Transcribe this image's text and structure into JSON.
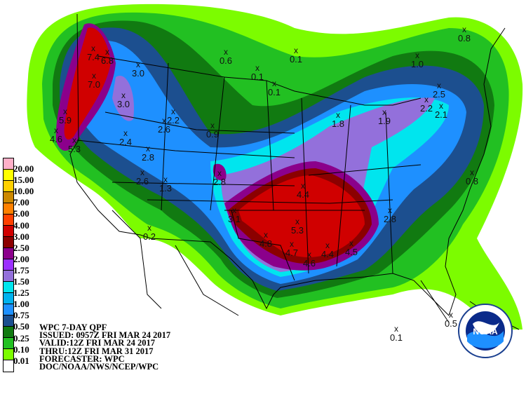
{
  "legend": {
    "colors": [
      "#ffb0c8",
      "#ffff00",
      "#ffd000",
      "#cc8800",
      "#ff8000",
      "#ff4000",
      "#d00000",
      "#8b0000",
      "#8b008b",
      "#9b30ff",
      "#9370db",
      "#00e5ee",
      "#00b2ee",
      "#1e90ff",
      "#1c4f8f",
      "#117a11",
      "#22c022",
      "#7cfc00",
      "#ffffff"
    ],
    "labels": [
      "20.00",
      "15.00",
      "10.00",
      "7.00",
      "5.00",
      "4.00",
      "3.00",
      "2.50",
      "2.00",
      "1.75",
      "1.50",
      "1.25",
      "1.00",
      "0.75",
      "0.50",
      "0.25",
      "0.10",
      "0.01"
    ]
  },
  "info": {
    "line1": "WPC 7-DAY QPF",
    "line2": "ISSUED: 0957Z FRI MAR 24 2017",
    "line3": "VALID:12Z FRI MAR 24 2017",
    "line4": "THRU:12Z FRI MAR 31 2017",
    "line5": "FORECASTER: WPC",
    "line6": "DOC/NOAA/NWS/NCEP/WPC"
  },
  "logo": {
    "text": "NOAA"
  },
  "maxima": [
    "7.4",
    "6.8",
    "7.0",
    "3.0",
    "3.0",
    "5.9",
    "4.6",
    "5.3",
    "2.4",
    "2.8",
    "2.6",
    "1.3",
    "2.6",
    "2.2",
    "0.9",
    "2.8",
    "0.6",
    "0.1",
    "0.1",
    "0.1",
    "0.2",
    "1.0",
    "0.8",
    "1.8",
    "1.9",
    "2.2",
    "2.5",
    "2.1",
    "0.8",
    "4.4",
    "3.1",
    "4.8",
    "5.3",
    "4.7",
    "4.6",
    "4.4",
    "4.5",
    "2.8",
    "0.5",
    "0.1"
  ]
}
